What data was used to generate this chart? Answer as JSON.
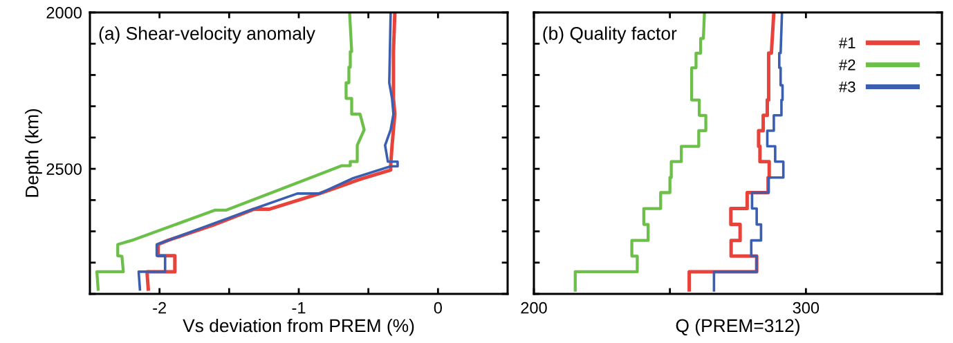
{
  "chart_data": [
    {
      "type": "line",
      "title": "(a) Shear-velocity anomaly",
      "xlabel": "Vs deviation from PREM (%)",
      "ylabel": "Depth (km)",
      "xlim": [
        -2.5,
        0.5
      ],
      "xticks": [
        -2,
        {
          "value": -1.5,
          "label": null
        },
        -1,
        {
          "value": -0.5,
          "label": null
        },
        0
      ],
      "ylim": [
        2900,
        2000
      ],
      "yticks": [
        2000,
        {
          "value": 2100,
          "label": null
        },
        {
          "value": 2200,
          "label": null
        },
        {
          "value": 2300,
          "label": null
        },
        {
          "value": 2400,
          "label": null
        },
        2500,
        {
          "value": 2600,
          "label": null
        },
        {
          "value": 2700,
          "label": null
        },
        {
          "value": 2800,
          "label": null
        },
        {
          "value": 2900,
          "label": null
        }
      ],
      "grid": false,
      "legend": false,
      "series": [
        {
          "color": "#e8433a",
          "x": [
            -0.31,
            -0.32,
            -0.32,
            -0.31,
            -0.32,
            -0.33,
            -0.34,
            -0.34,
            -0.55,
            -0.85,
            -1.21,
            -1.32,
            -1.61,
            -1.94,
            -2.01,
            -2.01,
            -1.89,
            -1.89,
            -2.09,
            -2.08
          ],
          "values": [
            2000,
            2125,
            2275,
            2325,
            2375,
            2425,
            2490,
            2504,
            2532,
            2579,
            2629,
            2629,
            2679,
            2729,
            2742,
            2778,
            2778,
            2829,
            2829,
            2890
          ]
        },
        {
          "color": "#6cc04a",
          "x": [
            -0.635,
            -0.62,
            -0.63,
            -0.63,
            -0.64,
            -0.64,
            -0.66,
            -0.66,
            -0.62,
            -0.62,
            -0.56,
            -0.53,
            -0.58,
            -0.58,
            -0.63,
            -0.63,
            -0.69,
            -1.52,
            -1.6,
            -1.89,
            -2.2,
            -2.3,
            -2.3,
            -2.27,
            -2.26,
            -2.45,
            -2.44
          ],
          "values": [
            2000,
            2125,
            2125,
            2175,
            2175,
            2225,
            2225,
            2275,
            2275,
            2325,
            2325,
            2375,
            2425,
            2477,
            2477,
            2490,
            2490,
            2632,
            2632,
            2679,
            2729,
            2742,
            2778,
            2780,
            2829,
            2829,
            2890
          ]
        },
        {
          "color": "#3a5fb0",
          "x": [
            -0.34,
            -0.35,
            -0.35,
            -0.33,
            -0.33,
            -0.32,
            -0.32,
            -0.34,
            -0.34,
            -0.38,
            -0.38,
            -0.36,
            -0.36,
            -0.29,
            -0.29,
            -0.34,
            -0.61,
            -0.85,
            -1.01,
            -1.33,
            -1.6,
            -1.94,
            -2.02,
            -2.02,
            -1.96,
            -1.96,
            -2.15,
            -2.14
          ],
          "values": [
            2000,
            2225,
            2225,
            2275,
            2275,
            2325,
            2325,
            2375,
            2375,
            2425,
            2425,
            2477,
            2477,
            2477,
            2492,
            2492,
            2530,
            2579,
            2579,
            2629,
            2673,
            2729,
            2742,
            2778,
            2778,
            2829,
            2829,
            2890
          ]
        }
      ]
    },
    {
      "type": "line",
      "title": "(b) Quality factor",
      "xlabel": "Q (PREM=312)",
      "xlim": [
        200,
        350
      ],
      "xticks": [
        200,
        {
          "value": 250,
          "label": null
        },
        300
      ],
      "ylim": [
        2900,
        2000
      ],
      "yticks": [
        {
          "value": 2000,
          "label": null
        },
        {
          "value": 2100,
          "label": null
        },
        {
          "value": 2200,
          "label": null
        },
        {
          "value": 2300,
          "label": null
        },
        {
          "value": 2400,
          "label": null
        },
        {
          "value": 2500,
          "label": null
        },
        {
          "value": 2600,
          "label": null
        },
        {
          "value": 2700,
          "label": null
        },
        {
          "value": 2800,
          "label": null
        },
        {
          "value": 2900,
          "label": null
        }
      ],
      "tick_labels": "x",
      "grid": false,
      "legend": "top right",
      "series": [
        {
          "name": "#1",
          "color": "#e8433a",
          "x": [
            288.2,
            287.3,
            286.3,
            286.3,
            285.8,
            285.8,
            284.3,
            284.3,
            282.6,
            282.6,
            283.1,
            283.1,
            286.5,
            286.5,
            286.1,
            286.1,
            278.4,
            278.4,
            272.4,
            272.4,
            275.8,
            275.8,
            272.5,
            272.5,
            281.9,
            281.9,
            257.1,
            257.1
          ],
          "values": [
            2000,
            2130,
            2130,
            2280,
            2280,
            2329,
            2329,
            2378,
            2378,
            2428,
            2428,
            2477,
            2477,
            2528,
            2528,
            2576,
            2576,
            2627,
            2627,
            2678,
            2678,
            2729,
            2729,
            2779,
            2779,
            2829,
            2829,
            2893
          ]
        },
        {
          "name": "#2",
          "color": "#6cc04a",
          "x": [
            262.7,
            262.3,
            261.3,
            261.3,
            259.6,
            259.6,
            258.0,
            258.0,
            260.8,
            260.8,
            263.2,
            263.2,
            260.6,
            260.6,
            254.2,
            254.2,
            250.5,
            250.5,
            250.0,
            250.0,
            246.6,
            246.6,
            240.4,
            240.4,
            242.0,
            242.0,
            236.0,
            236.0,
            238.0,
            238.0,
            215.2,
            215.2
          ],
          "values": [
            2000,
            2083,
            2083,
            2130,
            2130,
            2177,
            2177,
            2280,
            2280,
            2329,
            2329,
            2378,
            2378,
            2428,
            2428,
            2477,
            2477,
            2528,
            2528,
            2576,
            2576,
            2627,
            2627,
            2678,
            2678,
            2729,
            2729,
            2779,
            2779,
            2829,
            2829,
            2893
          ]
        },
        {
          "name": "#3",
          "color": "#3a5fb0",
          "x": [
            291.2,
            290.7,
            290.2,
            290.2,
            290.7,
            290.7,
            291.4,
            291.4,
            291.0,
            291.0,
            288.2,
            288.2,
            285.8,
            285.8,
            288.7,
            288.7,
            291.7,
            291.7,
            286.3,
            286.3,
            280.2,
            280.2,
            281.9,
            281.9,
            283.5,
            283.5,
            279.9,
            279.9,
            281.9,
            281.9,
            266.2,
            266.2
          ],
          "values": [
            2000,
            2130,
            2130,
            2177,
            2177,
            2233,
            2233,
            2280,
            2280,
            2329,
            2329,
            2378,
            2378,
            2428,
            2428,
            2477,
            2477,
            2528,
            2528,
            2576,
            2576,
            2627,
            2627,
            2678,
            2678,
            2729,
            2729,
            2779,
            2779,
            2829,
            2829,
            2893
          ]
        }
      ]
    }
  ]
}
